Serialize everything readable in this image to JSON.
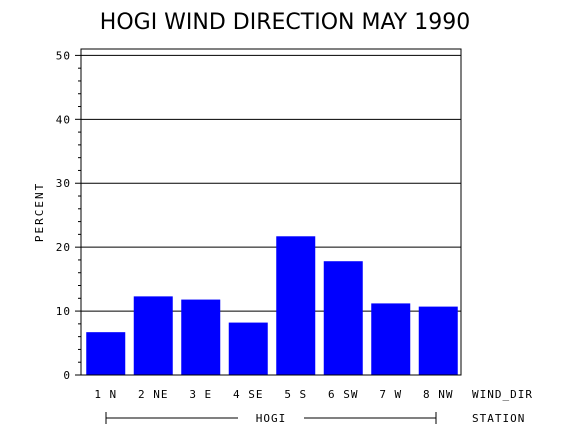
{
  "chart_data": {
    "type": "bar",
    "title": "HOGI WIND DIRECTION MAY 1990",
    "ylabel": "PERCENT",
    "xlabel": "WIND_DIR",
    "group_axis_label": "STATION",
    "group_label": "HOGI",
    "categories": [
      "1 N",
      "2 NE",
      "3 E",
      "4 SE",
      "5 S",
      "6 SW",
      "7 W",
      "8 NW"
    ],
    "values": [
      6.7,
      12.3,
      11.8,
      8.2,
      21.7,
      17.8,
      11.2,
      10.7
    ],
    "ylim": [
      0,
      51
    ],
    "yticks": [
      0,
      10,
      20,
      30,
      40,
      50
    ],
    "grid": true,
    "bar_color": "#0000ff"
  }
}
